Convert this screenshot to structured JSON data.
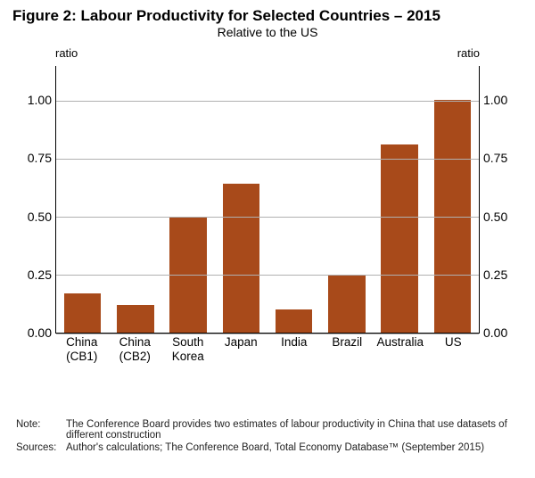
{
  "title": "Figure 2: Labour Productivity for Selected Countries – 2015",
  "subtitle": "Relative to the US",
  "chart": {
    "type": "bar",
    "y_axis_label_left": "ratio",
    "y_axis_label_right": "ratio",
    "ylim_min": 0.0,
    "ylim_max": 1.15,
    "yticks": [
      0.0,
      0.25,
      0.5,
      0.75,
      1.0
    ],
    "ytick_labels": [
      "0.00",
      "0.25",
      "0.50",
      "0.75",
      "1.00"
    ],
    "categories": [
      "China\n(CB1)",
      "China\n(CB2)",
      "South\nKorea",
      "Japan",
      "India",
      "Brazil",
      "Australia",
      "US"
    ],
    "values": [
      0.17,
      0.12,
      0.5,
      0.64,
      0.1,
      0.25,
      0.81,
      1.0
    ],
    "bar_color": "#a84a1a",
    "grid_color": "#b0b0b0",
    "background_color": "#ffffff",
    "axis_color": "#000000",
    "bar_width": 0.7,
    "label_fontsize": 14,
    "title_fontsize": 17
  },
  "note_label": "Note:",
  "note_text": "The Conference Board provides two estimates of labour productivity in China that use datasets of different construction",
  "sources_label": "Sources:",
  "sources_text": "Author's calculations; The Conference Board, Total Economy Database™ (September 2015)"
}
